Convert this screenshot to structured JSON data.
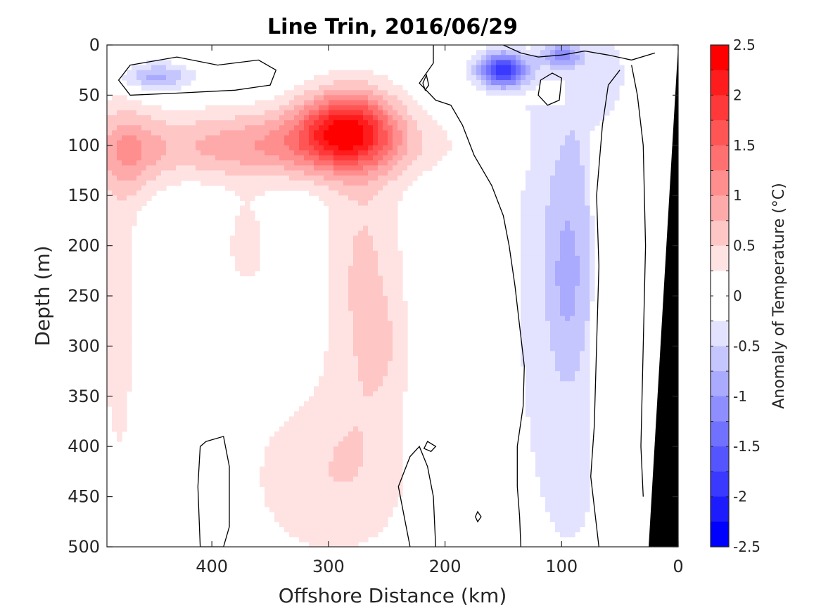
{
  "chart_data": {
    "type": "heatmap",
    "subtype": "filled-contour-section",
    "title": "Line Trin, 2016/06/29",
    "xlabel": "Offshore Distance (km)",
    "ylabel": "Depth (m)",
    "xlim": [
      490,
      0
    ],
    "x_reversed": true,
    "ylim": [
      0,
      500
    ],
    "y_reversed": true,
    "x_ticks": [
      400,
      300,
      200,
      100,
      0
    ],
    "x_tick_labels": [
      "400",
      "300",
      "200",
      "100",
      "0"
    ],
    "y_ticks": [
      0,
      50,
      100,
      150,
      200,
      250,
      300,
      350,
      400,
      450,
      500
    ],
    "y_tick_labels": [
      "0",
      "50",
      "100",
      "150",
      "200",
      "250",
      "300",
      "350",
      "400",
      "450",
      "500"
    ],
    "grid": false,
    "colorbar": {
      "label": "Anomaly of Temperature (°C)",
      "range": [
        -2.5,
        2.5
      ],
      "step": 0.25,
      "ticks": [
        2.5,
        2,
        1.5,
        1,
        0.5,
        0,
        -0.5,
        -1,
        -1.5,
        -2,
        -2.5
      ],
      "tick_labels": [
        "2.5",
        "2",
        "1.5",
        "1",
        "0.5",
        "0",
        "-0.5",
        "-1",
        "-1.5",
        "-2",
        "-2.5"
      ],
      "colormap": "blue-white-red"
    },
    "zero_contour": true,
    "bathymetry_color": "#000000",
    "features": [
      {
        "kind": "warm-core",
        "x_km": 285,
        "depth_m": 80,
        "anomaly": 2.2
      },
      {
        "kind": "warm-layer",
        "x_range_km": [
          490,
          200
        ],
        "depth_range_m": [
          50,
          150
        ],
        "anomaly": 1.2
      },
      {
        "kind": "warm-tongue",
        "x_range_km": [
          330,
          230
        ],
        "depth_range_m": [
          150,
          480
        ],
        "anomaly": 0.6
      },
      {
        "kind": "cold-core",
        "x_km": 150,
        "depth_m": 25,
        "anomaly": -1.8
      },
      {
        "kind": "cold-lens",
        "x_range_km": [
          475,
          420
        ],
        "depth_range_m": [
          20,
          50
        ],
        "anomaly": -0.6
      },
      {
        "kind": "cold-band",
        "x_range_km": [
          130,
          60
        ],
        "depth_range_m": [
          0,
          420
        ],
        "anomaly": -0.4
      }
    ]
  }
}
